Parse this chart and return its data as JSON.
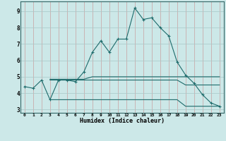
{
  "xlabel": "Humidex (Indice chaleur)",
  "bg_color": "#cce8e8",
  "grid_color": "#aad0d0",
  "line_color": "#1e6b6b",
  "xlim": [
    -0.5,
    23.5
  ],
  "ylim": [
    2.8,
    9.6
  ],
  "yticks": [
    3,
    4,
    5,
    6,
    7,
    8,
    9
  ],
  "xticks": [
    0,
    1,
    2,
    3,
    4,
    5,
    6,
    7,
    8,
    9,
    10,
    11,
    12,
    13,
    14,
    15,
    16,
    17,
    18,
    19,
    20,
    21,
    22,
    23
  ],
  "series1_x": [
    0,
    1,
    2,
    3,
    4,
    5,
    6,
    7,
    8,
    9,
    10,
    11,
    12,
    13,
    14,
    15,
    16,
    17,
    18,
    19,
    20,
    21,
    22,
    23
  ],
  "series1_y": [
    4.4,
    4.3,
    4.8,
    3.6,
    4.8,
    4.8,
    4.7,
    5.3,
    6.5,
    7.2,
    6.5,
    7.3,
    7.3,
    9.2,
    8.5,
    8.6,
    8.0,
    7.5,
    5.9,
    5.1,
    4.6,
    3.9,
    3.4,
    3.2
  ],
  "series2_x": [
    3,
    5,
    6,
    7,
    8,
    9,
    10,
    11,
    12,
    13,
    14,
    15,
    16,
    17,
    18,
    19,
    20,
    21,
    22,
    23
  ],
  "series2_y": [
    3.6,
    3.6,
    3.6,
    3.6,
    3.6,
    3.6,
    3.6,
    3.6,
    3.6,
    3.6,
    3.6,
    3.6,
    3.6,
    3.6,
    3.6,
    3.2,
    3.2,
    3.2,
    3.2,
    3.2
  ],
  "series3_x": [
    3,
    4,
    5,
    6,
    7,
    8,
    9,
    10,
    11,
    12,
    13,
    14,
    15,
    16,
    17,
    18,
    19,
    20,
    21,
    22,
    23
  ],
  "series3_y": [
    4.8,
    4.8,
    4.8,
    4.8,
    4.8,
    4.8,
    4.8,
    4.8,
    4.8,
    4.8,
    4.8,
    4.8,
    4.8,
    4.8,
    4.8,
    4.8,
    4.5,
    4.5,
    4.5,
    4.5,
    4.5
  ],
  "series4_x": [
    3,
    4,
    5,
    6,
    7,
    8,
    9,
    10,
    11,
    12,
    13,
    14,
    15,
    16,
    17,
    18,
    19,
    20,
    21,
    22,
    23
  ],
  "series4_y": [
    4.85,
    4.85,
    4.85,
    4.85,
    4.85,
    5.0,
    5.0,
    5.0,
    5.0,
    5.0,
    5.0,
    5.0,
    5.0,
    5.0,
    5.0,
    5.0,
    5.0,
    5.0,
    5.0,
    5.0,
    5.0
  ]
}
